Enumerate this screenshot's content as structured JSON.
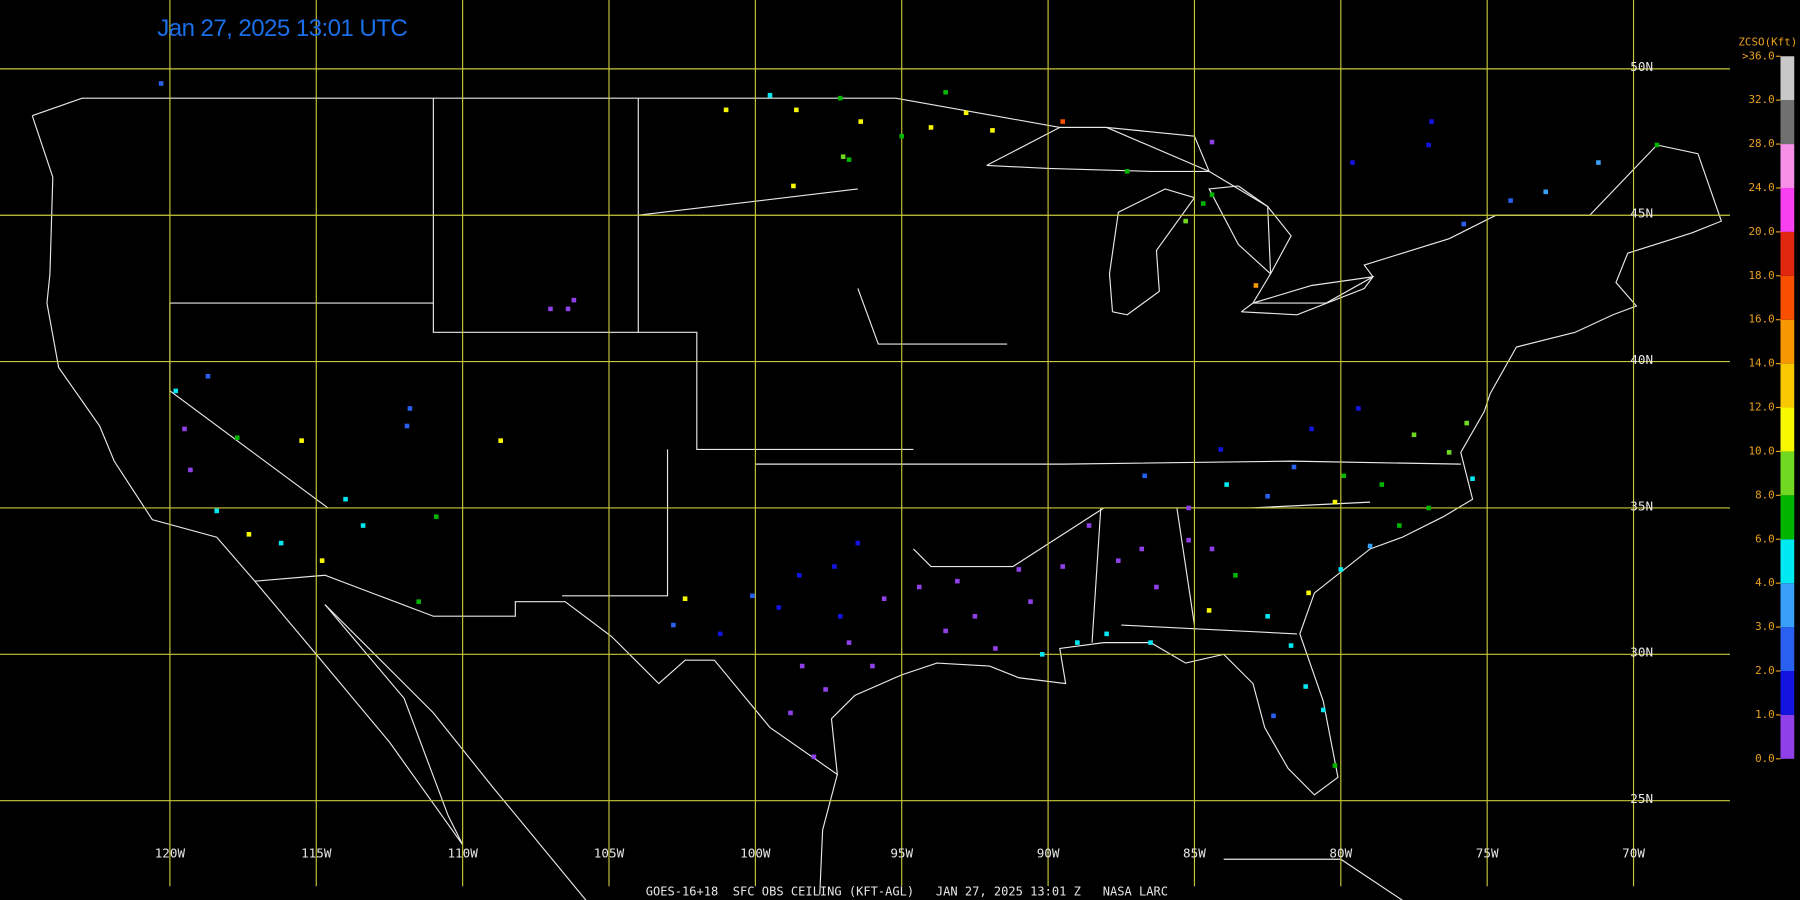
{
  "title": "Jan 27, 2025 13:01 UTC",
  "footer": "GOES-16+18  SFC OBS CEILING (KFT-AGL)   JAN 27, 2025 13:01 Z   NASA LARC",
  "map": {
    "lon_lines": [
      {
        "value": -120,
        "label": "120W"
      },
      {
        "value": -115,
        "label": "115W"
      },
      {
        "value": -110,
        "label": "110W"
      },
      {
        "value": -105,
        "label": "105W"
      },
      {
        "value": -100,
        "label": "100W"
      },
      {
        "value": -95,
        "label": "95W"
      },
      {
        "value": -90,
        "label": "90W"
      },
      {
        "value": -85,
        "label": "85W"
      },
      {
        "value": -80,
        "label": "80W"
      },
      {
        "value": -75,
        "label": "75W"
      },
      {
        "value": -70,
        "label": "70W"
      }
    ],
    "lat_lines": [
      {
        "value": 50,
        "label": "50N"
      },
      {
        "value": 45,
        "label": "45N"
      },
      {
        "value": 40,
        "label": "40N"
      },
      {
        "value": 35,
        "label": "35N"
      },
      {
        "value": 30,
        "label": "30N"
      },
      {
        "value": 25,
        "label": "25N"
      }
    ],
    "grid_color": "#c8c83c"
  },
  "legend": {
    "title": "ZCSO(Kft)",
    "ticks": [
      {
        "value": 0,
        "label": "0.0"
      },
      {
        "value": 1,
        "label": "1.0"
      },
      {
        "value": 2,
        "label": "2.0"
      },
      {
        "value": 3,
        "label": "3.0"
      },
      {
        "value": 4,
        "label": "4.0"
      },
      {
        "value": 6,
        "label": "6.0"
      },
      {
        "value": 8,
        "label": "8.0"
      },
      {
        "value": 10,
        "label": "10.0"
      },
      {
        "value": 12,
        "label": "12.0"
      },
      {
        "value": 14,
        "label": "14.0"
      },
      {
        "value": 16,
        "label": "16.0"
      },
      {
        "value": 18,
        "label": "18.0"
      },
      {
        "value": 20,
        "label": "20.0"
      },
      {
        "value": 24,
        "label": "24.0"
      },
      {
        "value": 28,
        "label": "28.0"
      },
      {
        "value": 32,
        "label": "32.0"
      },
      {
        "value": 36,
        "label": ">36.0"
      }
    ],
    "colors": [
      "#9040e8",
      "#1414e0",
      "#2a60f0",
      "#38a0f8",
      "#00e8f0",
      "#00b400",
      "#70d820",
      "#f8f800",
      "#f8c800",
      "#f89800",
      "#f85000",
      "#e02810",
      "#f840f0",
      "#f890e8",
      "#707070",
      "#c8c8c8"
    ]
  },
  "stations": [
    {
      "lon": -98.4,
      "lat": 29.6,
      "ceiling": 0.5
    },
    {
      "lon": -97.6,
      "lat": 28.8,
      "ceiling": 0.5
    },
    {
      "lon": -98.8,
      "lat": 28.0,
      "ceiling": 0.5
    },
    {
      "lon": -98.0,
      "lat": 26.5,
      "ceiling": 0.5
    },
    {
      "lon": -96.8,
      "lat": 30.4,
      "ceiling": 0.5
    },
    {
      "lon": -96.0,
      "lat": 29.6,
      "ceiling": 0.5
    },
    {
      "lon": -95.6,
      "lat": 31.9,
      "ceiling": 0.5
    },
    {
      "lon": -94.4,
      "lat": 32.3,
      "ceiling": 0.5
    },
    {
      "lon": -97.1,
      "lat": 31.3,
      "ceiling": 1.5
    },
    {
      "lon": -99.2,
      "lat": 31.6,
      "ceiling": 1.5
    },
    {
      "lon": -98.5,
      "lat": 32.7,
      "ceiling": 1.5
    },
    {
      "lon": -100.1,
      "lat": 32.0,
      "ceiling": 2.5
    },
    {
      "lon": -97.3,
      "lat": 33.0,
      "ceiling": 1.5
    },
    {
      "lon": -96.5,
      "lat": 33.8,
      "ceiling": 1.5
    },
    {
      "lon": -102.8,
      "lat": 31.0,
      "ceiling": 2.5
    },
    {
      "lon": -101.2,
      "lat": 30.7,
      "ceiling": 1.5
    },
    {
      "lon": -93.5,
      "lat": 30.8,
      "ceiling": 0.5
    },
    {
      "lon": -92.5,
      "lat": 31.3,
      "ceiling": 0.5
    },
    {
      "lon": -91.8,
      "lat": 30.2,
      "ceiling": 0.5
    },
    {
      "lon": -90.6,
      "lat": 31.8,
      "ceiling": 0.5
    },
    {
      "lon": -93.1,
      "lat": 32.5,
      "ceiling": 0.5
    },
    {
      "lon": -91.0,
      "lat": 32.9,
      "ceiling": 0.5
    },
    {
      "lon": -90.2,
      "lat": 30.0,
      "ceiling": 5
    },
    {
      "lon": -89.0,
      "lat": 30.4,
      "ceiling": 5
    },
    {
      "lon": -88.0,
      "lat": 30.7,
      "ceiling": 5
    },
    {
      "lon": -86.5,
      "lat": 30.4,
      "ceiling": 5
    },
    {
      "lon": -89.5,
      "lat": 33.0,
      "ceiling": 0.5
    },
    {
      "lon": -88.6,
      "lat": 34.4,
      "ceiling": 0.5
    },
    {
      "lon": -87.6,
      "lat": 33.2,
      "ceiling": 0.5
    },
    {
      "lon": -86.8,
      "lat": 33.6,
      "ceiling": 0.5
    },
    {
      "lon": -86.3,
      "lat": 32.3,
      "ceiling": 0.5
    },
    {
      "lon": -85.2,
      "lat": 33.9,
      "ceiling": 0.5
    },
    {
      "lon": -84.4,
      "lat": 33.6,
      "ceiling": 0.5
    },
    {
      "lon": -83.6,
      "lat": 32.7,
      "ceiling": 7
    },
    {
      "lon": -84.5,
      "lat": 31.5,
      "ceiling": 11
    },
    {
      "lon": -82.5,
      "lat": 31.3,
      "ceiling": 5
    },
    {
      "lon": -81.7,
      "lat": 30.3,
      "ceiling": 5
    },
    {
      "lon": -81.2,
      "lat": 28.9,
      "ceiling": 5
    },
    {
      "lon": -80.6,
      "lat": 28.1,
      "ceiling": 5
    },
    {
      "lon": -80.2,
      "lat": 26.2,
      "ceiling": 7
    },
    {
      "lon": -82.3,
      "lat": 27.9,
      "ceiling": 2.5
    },
    {
      "lon": -81.1,
      "lat": 32.1,
      "ceiling": 11
    },
    {
      "lon": -80.0,
      "lat": 32.9,
      "ceiling": 5
    },
    {
      "lon": -79.0,
      "lat": 33.7,
      "ceiling": 3.5
    },
    {
      "lon": -78.0,
      "lat": 34.4,
      "ceiling": 7
    },
    {
      "lon": -77.0,
      "lat": 35.0,
      "ceiling": 7
    },
    {
      "lon": -76.3,
      "lat": 36.9,
      "ceiling": 9
    },
    {
      "lon": -77.5,
      "lat": 37.5,
      "ceiling": 9
    },
    {
      "lon": -78.6,
      "lat": 35.8,
      "ceiling": 7
    },
    {
      "lon": -80.2,
      "lat": 35.2,
      "ceiling": 11
    },
    {
      "lon": -79.9,
      "lat": 36.1,
      "ceiling": 7
    },
    {
      "lon": -81.6,
      "lat": 36.4,
      "ceiling": 2.5
    },
    {
      "lon": -82.5,
      "lat": 35.4,
      "ceiling": 2.5
    },
    {
      "lon": -83.9,
      "lat": 35.8,
      "ceiling": 5
    },
    {
      "lon": -86.7,
      "lat": 36.1,
      "ceiling": 2.5
    },
    {
      "lon": -85.2,
      "lat": 35.0,
      "ceiling": 0.5
    },
    {
      "lon": -84.1,
      "lat": 37.0,
      "ceiling": 1.5
    },
    {
      "lon": -81.0,
      "lat": 37.7,
      "ceiling": 1.5
    },
    {
      "lon": -79.4,
      "lat": 38.4,
      "ceiling": 1.5
    },
    {
      "lon": -75.7,
      "lat": 37.9,
      "ceiling": 9
    },
    {
      "lon": -75.5,
      "lat": 36.0,
      "ceiling": 5
    },
    {
      "lon": -89.5,
      "lat": 48.2,
      "ceiling": 17
    },
    {
      "lon": -84.7,
      "lat": 45.4,
      "ceiling": 7
    },
    {
      "lon": -84.4,
      "lat": 45.7,
      "ceiling": 7
    },
    {
      "lon": -85.3,
      "lat": 44.8,
      "ceiling": 9
    },
    {
      "lon": -87.3,
      "lat": 46.5,
      "ceiling": 7
    },
    {
      "lon": -82.9,
      "lat": 42.6,
      "ceiling": 15
    },
    {
      "lon": -84.4,
      "lat": 47.5,
      "ceiling": 0.5
    },
    {
      "lon": -79.6,
      "lat": 46.8,
      "ceiling": 1.5
    },
    {
      "lon": -77.0,
      "lat": 47.4,
      "ceiling": 1.5
    },
    {
      "lon": -76.9,
      "lat": 48.2,
      "ceiling": 1.5
    },
    {
      "lon": -75.8,
      "lat": 44.7,
      "ceiling": 2.5
    },
    {
      "lon": -74.2,
      "lat": 45.5,
      "ceiling": 2.5
    },
    {
      "lon": -73.0,
      "lat": 45.8,
      "ceiling": 3.5
    },
    {
      "lon": -71.2,
      "lat": 46.8,
      "ceiling": 3.5
    },
    {
      "lon": -69.2,
      "lat": 47.4,
      "ceiling": 7
    },
    {
      "lon": -101.0,
      "lat": 48.6,
      "ceiling": 11
    },
    {
      "lon": -99.5,
      "lat": 49.1,
      "ceiling": 5
    },
    {
      "lon": -98.6,
      "lat": 48.6,
      "ceiling": 11
    },
    {
      "lon": -97.1,
      "lat": 49.0,
      "ceiling": 7
    },
    {
      "lon": -96.4,
      "lat": 48.2,
      "ceiling": 11
    },
    {
      "lon": -97.0,
      "lat": 47.0,
      "ceiling": 9
    },
    {
      "lon": -98.7,
      "lat": 46.0,
      "ceiling": 11
    },
    {
      "lon": -96.8,
      "lat": 46.9,
      "ceiling": 7
    },
    {
      "lon": -95.0,
      "lat": 47.7,
      "ceiling": 7
    },
    {
      "lon": -94.0,
      "lat": 48.0,
      "ceiling": 11
    },
    {
      "lon": -92.8,
      "lat": 48.5,
      "ceiling": 11
    },
    {
      "lon": -91.9,
      "lat": 47.9,
      "ceiling": 11
    },
    {
      "lon": -93.5,
      "lat": 49.2,
      "ceiling": 7
    },
    {
      "lon": -119.8,
      "lat": 39.0,
      "ceiling": 5
    },
    {
      "lon": -118.7,
      "lat": 39.5,
      "ceiling": 2.5
    },
    {
      "lon": -117.7,
      "lat": 37.4,
      "ceiling": 7
    },
    {
      "lon": -119.5,
      "lat": 37.7,
      "ceiling": 0.5
    },
    {
      "lon": -119.3,
      "lat": 36.3,
      "ceiling": 0.5
    },
    {
      "lon": -118.4,
      "lat": 34.9,
      "ceiling": 5
    },
    {
      "lon": -117.3,
      "lat": 34.1,
      "ceiling": 11
    },
    {
      "lon": -116.2,
      "lat": 33.8,
      "ceiling": 5
    },
    {
      "lon": -115.5,
      "lat": 37.3,
      "ceiling": 11
    },
    {
      "lon": -114.0,
      "lat": 35.3,
      "ceiling": 5
    },
    {
      "lon": -113.4,
      "lat": 34.4,
      "ceiling": 5
    },
    {
      "lon": -111.9,
      "lat": 37.8,
      "ceiling": 2.5
    },
    {
      "lon": -111.8,
      "lat": 38.4,
      "ceiling": 2.5
    },
    {
      "lon": -108.7,
      "lat": 37.3,
      "ceiling": 11
    },
    {
      "lon": -110.9,
      "lat": 34.7,
      "ceiling": 7
    },
    {
      "lon": -111.5,
      "lat": 31.8,
      "ceiling": 7
    },
    {
      "lon": -106.4,
      "lat": 41.8,
      "ceiling": 0.5
    },
    {
      "lon": -107.0,
      "lat": 41.8,
      "ceiling": 0.5
    },
    {
      "lon": -106.2,
      "lat": 42.1,
      "ceiling": 0.5
    },
    {
      "lon": -114.8,
      "lat": 33.2,
      "ceiling": 11
    },
    {
      "lon": -102.4,
      "lat": 31.9,
      "ceiling": 11
    },
    {
      "lon": -120.3,
      "lat": 49.5,
      "ceiling": 2.5
    }
  ]
}
